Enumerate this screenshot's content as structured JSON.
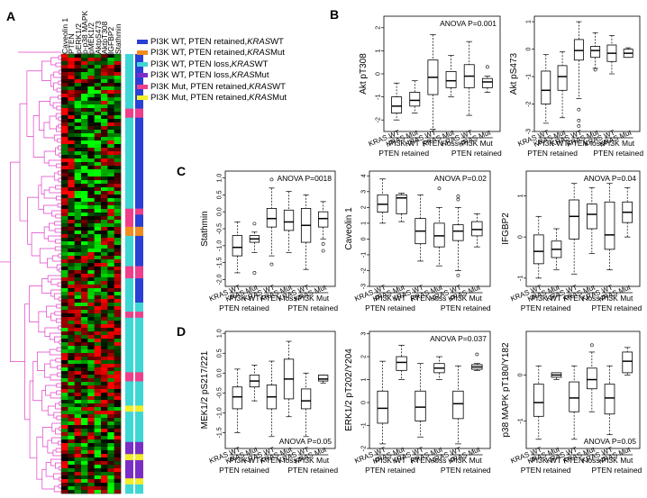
{
  "panel_letters": {
    "A": "A",
    "B": "B",
    "C": "C",
    "D": "D"
  },
  "heatmap": {
    "columns": [
      "Caveolin 1",
      "PTEN",
      "pERK1/2",
      "p-p38 MAPK",
      "pMEK1/2",
      "AktpS473",
      "AktpT308",
      "IGFBP2",
      "Stathmin"
    ],
    "colors": {
      "high": "#ff0000",
      "low": "#00ff00",
      "mid": "#000000",
      "dendrogram": "#e040c8"
    }
  },
  "legend": [
    {
      "label_pre": "PI3K WT, PTEN retained, ",
      "label_em": "KRAS",
      "label_post": " WT",
      "color": "#2a3fd4"
    },
    {
      "label_pre": "PI3K WT, PTEN retained, ",
      "label_em": "KRAS",
      "label_post": " Mut",
      "color": "#f28c1e"
    },
    {
      "label_pre": "PI3K WT, PTEN loss, ",
      "label_em": "KRAS",
      "label_post": " WT",
      "color": "#3fd6d6"
    },
    {
      "label_pre": "PI3K WT, PTEN loss, ",
      "label_em": "KRAS",
      "label_post": " Mut",
      "color": "#7b2ec6"
    },
    {
      "label_pre": "PI3K Mut, PTEN retained, ",
      "label_em": "KRAS",
      "label_post": " WT",
      "color": "#ef3f8a"
    },
    {
      "label_pre": "PI3K Mut, PTEN retained, ",
      "label_em": "KRAS",
      "label_post": " Mut",
      "color": "#f2ee2a"
    }
  ],
  "group_labels": {
    "kras_wt": "KRAS WT",
    "kras_mut": "KRAS Mut",
    "pi3k_wt": "PI3K WT",
    "pten_retained": "PTEN retained",
    "pten_loss": "PTEN loss",
    "pi3k_mut": "PI3K Mut"
  },
  "chart_data": [
    {
      "type": "box",
      "panel": "B",
      "ylabel": "Akt pT308",
      "ylim": [
        -2.5,
        2.5
      ],
      "yticks": [
        "-2",
        "-1",
        "0",
        "1",
        "2"
      ],
      "annotation": "ANOVA P=0.001",
      "boxes": [
        {
          "min": -2.0,
          "q1": -1.7,
          "med": -1.4,
          "q3": -1.0,
          "max": -0.4,
          "outliers": []
        },
        {
          "min": -1.7,
          "q1": -1.4,
          "med": -1.15,
          "q3": -0.8,
          "max": -0.3,
          "outliers": []
        },
        {
          "min": -2.4,
          "q1": -0.9,
          "med": -0.15,
          "q3": 0.6,
          "max": 1.7,
          "outliers": []
        },
        {
          "min": -1.0,
          "q1": -0.6,
          "med": -0.3,
          "q3": 0.1,
          "max": 0.8,
          "outliers": []
        },
        {
          "min": -1.8,
          "q1": -0.6,
          "med": -0.1,
          "q3": 0.4,
          "max": 1.4,
          "outliers": []
        },
        {
          "min": -0.8,
          "q1": -0.6,
          "med": -0.35,
          "q3": -0.2,
          "max": -0.1,
          "outliers": [
            0.3
          ]
        }
      ]
    },
    {
      "type": "box",
      "panel": "B",
      "ylabel": "Akt pS473",
      "ylim": [
        -3,
        1.2
      ],
      "yticks": [
        "-3",
        "-2",
        "-1",
        "0",
        "1"
      ],
      "annotation": "",
      "boxes": [
        {
          "min": -2.7,
          "q1": -2.0,
          "med": -1.5,
          "q3": -0.8,
          "max": -0.2,
          "outliers": []
        },
        {
          "min": -2.5,
          "q1": -1.5,
          "med": -1.0,
          "q3": -0.6,
          "max": -0.1,
          "outliers": []
        },
        {
          "min": -1.8,
          "q1": -0.4,
          "med": -0.05,
          "q3": 0.35,
          "max": 1.0,
          "outliers": [
            -2.2,
            -2.6,
            -2.8
          ]
        },
        {
          "min": -0.7,
          "q1": -0.3,
          "med": -0.05,
          "q3": 0.1,
          "max": 0.6,
          "outliers": [
            -0.75
          ]
        },
        {
          "min": -0.9,
          "q1": -0.45,
          "med": -0.15,
          "q3": 0.15,
          "max": 0.5,
          "outliers": []
        },
        {
          "min": -0.3,
          "q1": -0.3,
          "med": -0.15,
          "q3": 0.0,
          "max": 0.05,
          "outliers": []
        }
      ]
    },
    {
      "type": "box",
      "panel": "C",
      "ylabel": "Stathmin",
      "ylim": [
        -2.2,
        1.2
      ],
      "yticks": [
        "-2.0",
        "-1.5",
        "-1.0",
        "-0.5",
        "0.0",
        "0.5",
        "1.0"
      ],
      "annotation": "ANOVA P=0018",
      "boxes": [
        {
          "min": -1.8,
          "q1": -1.3,
          "med": -1.05,
          "q3": -0.7,
          "max": -0.3,
          "outliers": []
        },
        {
          "min": -1.2,
          "q1": -0.9,
          "med": -0.8,
          "q3": -0.7,
          "max": -0.6,
          "outliers": [
            -0.35,
            -1.8
          ]
        },
        {
          "min": -1.3,
          "q1": -0.45,
          "med": -0.2,
          "q3": 0.1,
          "max": 0.7,
          "outliers": [
            0.95,
            -1.55
          ]
        },
        {
          "min": -1.2,
          "q1": -0.55,
          "med": -0.3,
          "q3": 0.05,
          "max": 0.6,
          "outliers": []
        },
        {
          "min": -1.7,
          "q1": -0.9,
          "med": -0.4,
          "q3": 0.1,
          "max": 0.5,
          "outliers": []
        },
        {
          "min": -0.8,
          "q1": -0.45,
          "med": -0.2,
          "q3": 0.0,
          "max": 0.3,
          "outliers": [
            -0.95,
            -1.15
          ]
        }
      ]
    },
    {
      "type": "box",
      "panel": "C",
      "ylabel": "Caveolin 1",
      "ylim": [
        -3,
        4.3
      ],
      "yticks": [
        "-3",
        "-2",
        "-1",
        "0",
        "1",
        "2",
        "3",
        "4"
      ],
      "annotation": "ANOVA P=0.02",
      "boxes": [
        {
          "min": 1.0,
          "q1": 1.7,
          "med": 2.2,
          "q3": 2.8,
          "max": 3.8,
          "outliers": []
        },
        {
          "min": 1.1,
          "q1": 1.6,
          "med": 2.6,
          "q3": 2.8,
          "max": 2.9,
          "outliers": []
        },
        {
          "min": -1.4,
          "q1": -0.3,
          "med": 0.5,
          "q3": 1.3,
          "max": 2.8,
          "outliers": []
        },
        {
          "min": -1.7,
          "q1": -0.5,
          "med": 0.2,
          "q3": 1.0,
          "max": 2.0,
          "outliers": [
            3.2
          ]
        },
        {
          "min": -2.0,
          "q1": -0.1,
          "med": 0.5,
          "q3": 0.9,
          "max": 2.0,
          "outliers": [
            2.5,
            2.7,
            -2.3
          ]
        },
        {
          "min": -0.5,
          "q1": 0.2,
          "med": 0.6,
          "q3": 1.1,
          "max": 1.6,
          "outliers": []
        }
      ]
    },
    {
      "type": "box",
      "panel": "C",
      "ylabel": "IFGBP2",
      "ylim": [
        -1.2,
        1.6
      ],
      "yticks": [
        "-1",
        "0",
        "1"
      ],
      "annotation": "ANOVA P=0.04",
      "boxes": [
        {
          "min": -1.0,
          "q1": -0.65,
          "med": -0.35,
          "q3": 0.05,
          "max": 0.5,
          "outliers": []
        },
        {
          "min": -0.8,
          "q1": -0.5,
          "med": -0.3,
          "q3": -0.1,
          "max": 0.2,
          "outliers": []
        },
        {
          "min": -0.9,
          "q1": -0.05,
          "med": 0.5,
          "q3": 0.9,
          "max": 1.3,
          "outliers": []
        },
        {
          "min": -0.4,
          "q1": 0.2,
          "med": 0.55,
          "q3": 0.8,
          "max": 1.2,
          "outliers": []
        },
        {
          "min": -0.8,
          "q1": -0.3,
          "med": 0.05,
          "q3": 0.85,
          "max": 1.3,
          "outliers": []
        },
        {
          "min": 0.0,
          "q1": 0.35,
          "med": 0.6,
          "q3": 0.85,
          "max": 1.2,
          "outliers": []
        }
      ]
    },
    {
      "type": "box",
      "panel": "D",
      "ylabel": "MEK1/2 pS217/221",
      "ylim": [
        -1.9,
        1.05
      ],
      "yticks": [
        "-1.5",
        "-1.0",
        "-0.5",
        "0.0",
        "0.5",
        "1.0"
      ],
      "annotation": "ANOVA P=0.05",
      "boxes": [
        {
          "min": -1.5,
          "q1": -0.9,
          "med": -0.6,
          "q3": -0.35,
          "max": 0.1,
          "outliers": []
        },
        {
          "min": -0.7,
          "q1": -0.35,
          "med": -0.2,
          "q3": -0.05,
          "max": 0.2,
          "outliers": []
        },
        {
          "min": -1.6,
          "q1": -0.9,
          "med": -0.6,
          "q3": -0.3,
          "max": 0.3,
          "outliers": []
        },
        {
          "min": -1.1,
          "q1": -0.65,
          "med": -0.15,
          "q3": 0.35,
          "max": 0.8,
          "outliers": []
        },
        {
          "min": -1.6,
          "q1": -0.9,
          "med": -0.7,
          "q3": -0.4,
          "max": 0.0,
          "outliers": []
        },
        {
          "min": -0.25,
          "q1": -0.2,
          "med": -0.15,
          "q3": -0.05,
          "max": -0.05,
          "outliers": []
        }
      ]
    },
    {
      "type": "box",
      "panel": "D",
      "ylabel": "ERK1/2 pT202/Y204",
      "ylim": [
        -2,
        3.1
      ],
      "yticks": [
        "-2",
        "-1",
        "0",
        "1",
        "2",
        "3"
      ],
      "annotation": "ANOVA P=0.037",
      "boxes": [
        {
          "min": -1.8,
          "q1": -0.9,
          "med": -0.25,
          "q3": 0.5,
          "max": 1.8,
          "outliers": []
        },
        {
          "min": 1.0,
          "q1": 1.4,
          "med": 1.75,
          "q3": 2.0,
          "max": 2.5,
          "outliers": []
        },
        {
          "min": -1.5,
          "q1": -0.8,
          "med": -0.2,
          "q3": 0.5,
          "max": 1.7,
          "outliers": []
        },
        {
          "min": 1.0,
          "q1": 1.3,
          "med": 1.5,
          "q3": 1.7,
          "max": 2.0,
          "outliers": []
        },
        {
          "min": -1.8,
          "q1": -0.7,
          "med": -0.05,
          "q3": 0.5,
          "max": 1.6,
          "outliers": []
        },
        {
          "min": 1.4,
          "q1": 1.45,
          "med": 1.55,
          "q3": 1.65,
          "max": 1.7,
          "outliers": [
            2.1
          ]
        }
      ]
    },
    {
      "type": "box",
      "panel": "D",
      "ylabel": "p38 MAPK pT180/Y182",
      "ylim": [
        -1.6,
        0.95
      ],
      "yticks": [
        "-1",
        "0"
      ],
      "annotation": "ANOVA P=0.05",
      "boxes": [
        {
          "min": -1.4,
          "q1": -0.9,
          "med": -0.6,
          "q3": -0.2,
          "max": 0.2,
          "outliers": []
        },
        {
          "min": -0.1,
          "q1": -0.05,
          "med": 0.0,
          "q3": 0.05,
          "max": 0.05,
          "outliers": []
        },
        {
          "min": -1.4,
          "q1": -0.8,
          "med": -0.5,
          "q3": -0.15,
          "max": 0.2,
          "outliers": []
        },
        {
          "min": -0.8,
          "q1": -0.3,
          "med": -0.1,
          "q3": 0.15,
          "max": 0.5,
          "outliers": [
            0.65
          ]
        },
        {
          "min": -1.3,
          "q1": -0.85,
          "med": -0.5,
          "q3": -0.2,
          "max": 0.2,
          "outliers": []
        },
        {
          "min": 0.0,
          "q1": 0.05,
          "med": 0.3,
          "q3": 0.5,
          "max": 0.6,
          "outliers": []
        }
      ]
    }
  ]
}
